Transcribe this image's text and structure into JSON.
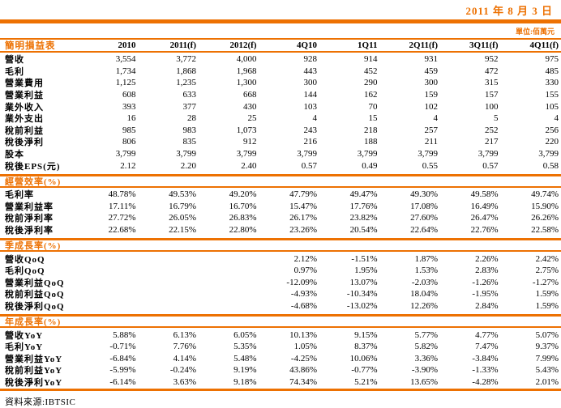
{
  "colors": {
    "accent": "#ED7102"
  },
  "page": {
    "date": "2011 年 8 月 3 日",
    "unit": "單位:佰萬元",
    "source": "資料來源:IBTSIC"
  },
  "table": {
    "title": "簡明損益表",
    "columns": [
      "2010",
      "2011(f)",
      "2012(f)",
      "4Q10",
      "1Q11",
      "2Q11(f)",
      "3Q11(f)",
      "4Q11(f)"
    ],
    "sections": [
      {
        "header": null,
        "rows": [
          {
            "label": "營收",
            "values": [
              "3,554",
              "3,772",
              "4,000",
              "928",
              "914",
              "931",
              "952",
              "975"
            ]
          },
          {
            "label": "毛利",
            "values": [
              "1,734",
              "1,868",
              "1,968",
              "443",
              "452",
              "459",
              "472",
              "485"
            ]
          },
          {
            "label": "營業費用",
            "values": [
              "1,125",
              "1,235",
              "1,300",
              "300",
              "290",
              "300",
              "315",
              "330"
            ]
          },
          {
            "label": "營業利益",
            "values": [
              "608",
              "633",
              "668",
              "144",
              "162",
              "159",
              "157",
              "155"
            ]
          },
          {
            "label": "業外收入",
            "values": [
              "393",
              "377",
              "430",
              "103",
              "70",
              "102",
              "100",
              "105"
            ]
          },
          {
            "label": "業外支出",
            "values": [
              "16",
              "28",
              "25",
              "4",
              "15",
              "4",
              "5",
              "4"
            ]
          },
          {
            "label": "稅前利益",
            "values": [
              "985",
              "983",
              "1,073",
              "243",
              "218",
              "257",
              "252",
              "256"
            ]
          },
          {
            "label": "稅後淨利",
            "values": [
              "806",
              "835",
              "912",
              "216",
              "188",
              "211",
              "217",
              "220"
            ]
          },
          {
            "label": "股本",
            "values": [
              "3,799",
              "3,799",
              "3,799",
              "3,799",
              "3,799",
              "3,799",
              "3,799",
              "3,799"
            ]
          },
          {
            "label": "稅後EPS(元)",
            "values": [
              "2.12",
              "2.20",
              "2.40",
              "0.57",
              "0.49",
              "0.55",
              "0.57",
              "0.58"
            ]
          }
        ]
      },
      {
        "header": "經營效率(%)",
        "rows": [
          {
            "label": "毛利率",
            "values": [
              "48.78%",
              "49.53%",
              "49.20%",
              "47.79%",
              "49.47%",
              "49.30%",
              "49.58%",
              "49.74%"
            ]
          },
          {
            "label": "營業利益率",
            "values": [
              "17.11%",
              "16.79%",
              "16.70%",
              "15.47%",
              "17.76%",
              "17.08%",
              "16.49%",
              "15.90%"
            ]
          },
          {
            "label": "稅前淨利率",
            "values": [
              "27.72%",
              "26.05%",
              "26.83%",
              "26.17%",
              "23.82%",
              "27.60%",
              "26.47%",
              "26.26%"
            ]
          },
          {
            "label": "稅後淨利率",
            "values": [
              "22.68%",
              "22.15%",
              "22.80%",
              "23.26%",
              "20.54%",
              "22.64%",
              "22.76%",
              "22.58%"
            ]
          }
        ]
      },
      {
        "header": "季成長率(%)",
        "rows": [
          {
            "label": "營收QoQ",
            "values": [
              "",
              "",
              "",
              "2.12%",
              "-1.51%",
              "1.87%",
              "2.26%",
              "2.42%"
            ]
          },
          {
            "label": "毛利QoQ",
            "values": [
              "",
              "",
              "",
              "0.97%",
              "1.95%",
              "1.53%",
              "2.83%",
              "2.75%"
            ]
          },
          {
            "label": "營業利益QoQ",
            "values": [
              "",
              "",
              "",
              "-12.09%",
              "13.07%",
              "-2.03%",
              "-1.26%",
              "-1.27%"
            ]
          },
          {
            "label": "稅前利益QoQ",
            "values": [
              "",
              "",
              "",
              "-4.93%",
              "-10.34%",
              "18.04%",
              "-1.95%",
              "1.59%"
            ]
          },
          {
            "label": "稅後淨利QoQ",
            "values": [
              "",
              "",
              "",
              "-4.68%",
              "-13.02%",
              "12.26%",
              "2.84%",
              "1.59%"
            ]
          }
        ]
      },
      {
        "header": "年成長率(%)",
        "rows": [
          {
            "label": "營收YoY",
            "values": [
              "5.88%",
              "6.13%",
              "6.05%",
              "10.13%",
              "9.15%",
              "5.77%",
              "4.77%",
              "5.07%"
            ]
          },
          {
            "label": "毛利YoY",
            "values": [
              "-0.71%",
              "7.76%",
              "5.35%",
              "1.05%",
              "8.37%",
              "5.82%",
              "7.47%",
              "9.37%"
            ]
          },
          {
            "label": "營業利益YoY",
            "values": [
              "-6.84%",
              "4.14%",
              "5.48%",
              "-4.25%",
              "10.06%",
              "3.36%",
              "-3.84%",
              "7.99%"
            ]
          },
          {
            "label": "稅前利益YoY",
            "values": [
              "-5.99%",
              "-0.24%",
              "9.19%",
              "43.86%",
              "-0.77%",
              "-3.90%",
              "-1.33%",
              "5.43%"
            ]
          },
          {
            "label": "稅後淨利YoY",
            "values": [
              "-6.14%",
              "3.63%",
              "9.18%",
              "74.34%",
              "5.21%",
              "13.65%",
              "-4.28%",
              "2.01%"
            ]
          }
        ]
      }
    ]
  }
}
